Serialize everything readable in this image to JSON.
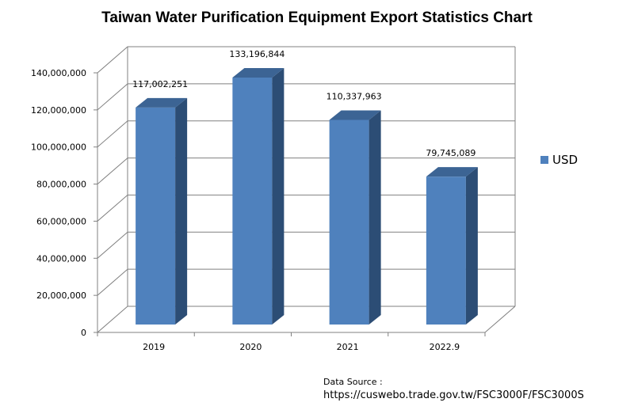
{
  "chart_data": {
    "type": "bar",
    "title": "Taiwan Water Purification Equipment Export Statistics Chart",
    "categories": [
      "2019",
      "2020",
      "2021",
      "2022.9"
    ],
    "series": [
      {
        "name": "USD",
        "values": [
          117002251,
          133196844,
          110337963,
          79745089
        ],
        "labels": [
          "117,002,251",
          "133,196,844",
          "110,337,963",
          "79,745,089"
        ]
      }
    ],
    "ylim": [
      0,
      140000000
    ],
    "yticks": [
      0,
      20000000,
      40000000,
      60000000,
      80000000,
      100000000,
      120000000,
      140000000
    ],
    "ytick_labels": [
      "0",
      "20,000,000",
      "40,000,000",
      "60,000,000",
      "80,000,000",
      "100,000,000",
      "120,000,000",
      "140,000,000"
    ],
    "grid": true,
    "legend": "right",
    "style": "3d",
    "colors": {
      "bar_front": "#4f81bd",
      "bar_side": "#2c4d75",
      "bar_top": "#3c6494",
      "grid": "#808080"
    }
  },
  "source": {
    "label": "Data Source :",
    "url": "https://cuswebo.trade.gov.tw/FSC3000F/FSC3000S"
  }
}
